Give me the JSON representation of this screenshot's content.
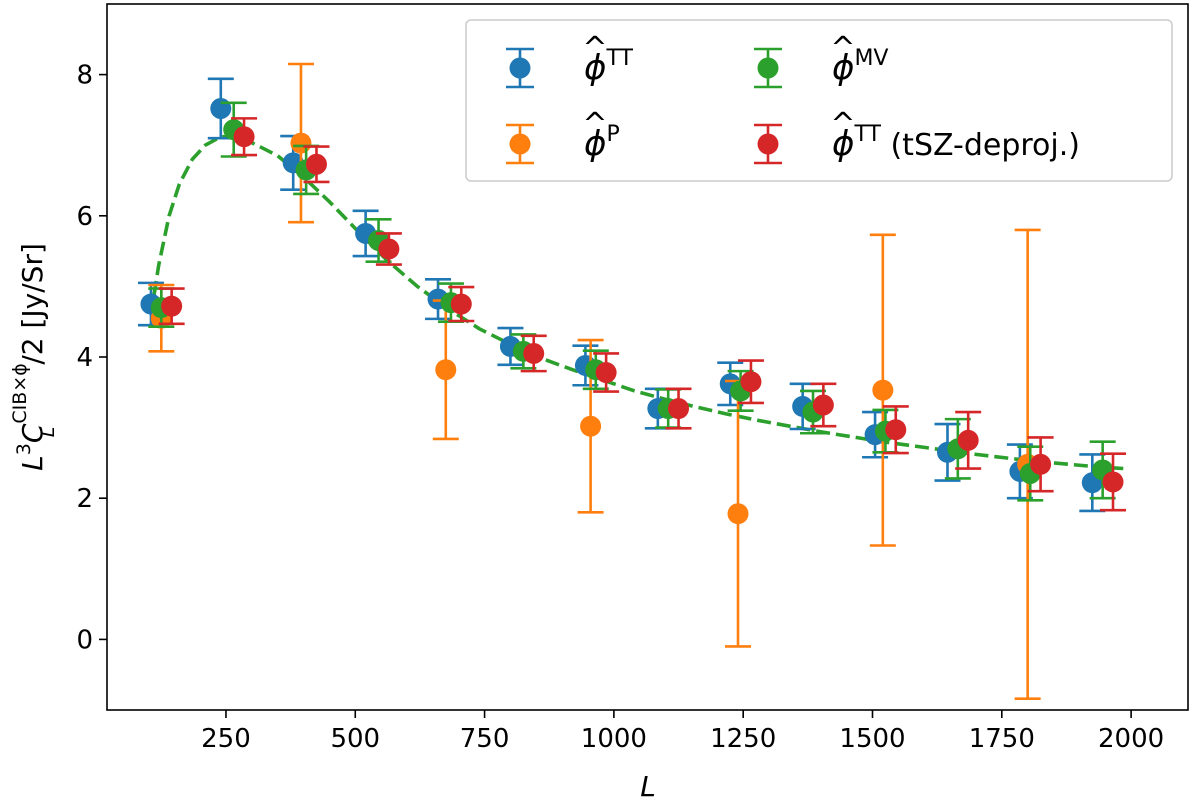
{
  "chart_data": {
    "type": "scatter",
    "xlabel": "L",
    "ylabel": {
      "base": "L",
      "exp": "3",
      "c": "C",
      "c_sup": "CIB×ϕ",
      "c_sub": "L",
      "tail": "/2 [Jy/Sr]"
    },
    "xlim": [
      20,
      2110
    ],
    "ylim": [
      -1.0,
      9.0
    ],
    "xticks": [
      250,
      500,
      750,
      1000,
      1250,
      1500,
      1750,
      2000
    ],
    "yticks": [
      0,
      2,
      4,
      6,
      8
    ],
    "grid": false,
    "legend_position": "top-right",
    "series": [
      {
        "name": "ϕ̂^TT",
        "label_base": "ϕ",
        "label_sup": "TT",
        "label_suffix": "",
        "color": "#1f77b4",
        "x": [
          105,
          240,
          380,
          520,
          660,
          800,
          945,
          1085,
          1225,
          1365,
          1505,
          1645,
          1785,
          1925
        ],
        "y": [
          4.75,
          7.52,
          6.75,
          5.75,
          4.82,
          4.15,
          3.88,
          3.27,
          3.62,
          3.3,
          2.9,
          2.65,
          2.38,
          2.22
        ],
        "err": [
          0.3,
          0.42,
          0.38,
          0.32,
          0.28,
          0.26,
          0.28,
          0.28,
          0.3,
          0.32,
          0.32,
          0.4,
          0.38,
          0.4
        ]
      },
      {
        "name": "ϕ̂^P",
        "label_base": "ϕ",
        "label_sup": "P",
        "label_suffix": "",
        "color": "#ff7f0e",
        "x": [
          125,
          395,
          675,
          955,
          1240,
          1520,
          1800
        ],
        "y": [
          4.55,
          7.03,
          3.82,
          3.02,
          1.78,
          3.53,
          2.48
        ],
        "err": [
          0.47,
          1.12,
          0.98,
          1.22,
          1.88,
          2.2,
          3.32
        ]
      },
      {
        "name": "ϕ̂^MV",
        "label_base": "ϕ",
        "label_sup": "MV",
        "label_suffix": "",
        "color": "#2ca02c",
        "x": [
          125,
          265,
          405,
          545,
          685,
          825,
          965,
          1105,
          1245,
          1385,
          1525,
          1665,
          1805,
          1945
        ],
        "y": [
          4.7,
          7.22,
          6.65,
          5.65,
          4.77,
          4.08,
          3.82,
          3.27,
          3.52,
          3.22,
          2.95,
          2.7,
          2.35,
          2.4
        ],
        "err": [
          0.27,
          0.38,
          0.34,
          0.3,
          0.27,
          0.24,
          0.27,
          0.27,
          0.28,
          0.3,
          0.3,
          0.42,
          0.38,
          0.4
        ]
      },
      {
        "name": "ϕ̂^TT (tSZ-deproj.)",
        "label_base": "ϕ",
        "label_sup": "TT",
        "label_suffix": " (tSZ-deproj.)",
        "color": "#d62728",
        "x": [
          145,
          285,
          425,
          565,
          705,
          845,
          985,
          1125,
          1265,
          1405,
          1545,
          1685,
          1825,
          1965
        ],
        "y": [
          4.72,
          7.12,
          6.73,
          5.53,
          4.75,
          4.05,
          3.78,
          3.27,
          3.65,
          3.32,
          2.97,
          2.82,
          2.48,
          2.23
        ],
        "err": [
          0.25,
          0.26,
          0.25,
          0.22,
          0.24,
          0.25,
          0.27,
          0.28,
          0.3,
          0.3,
          0.33,
          0.4,
          0.38,
          0.4
        ]
      }
    ],
    "model_curve": {
      "color": "#2ca02c",
      "style": "dashed",
      "x": [
        105,
        120,
        140,
        160,
        185,
        210,
        240,
        275,
        310,
        350,
        400,
        450,
        500,
        560,
        620,
        680,
        740,
        800,
        860,
        920,
        980,
        1040,
        1100,
        1160,
        1220,
        1280,
        1340,
        1400,
        1460,
        1520,
        1580,
        1640,
        1700,
        1760,
        1820,
        1880,
        1940,
        1985
      ],
      "y": [
        4.6,
        5.3,
        6.0,
        6.45,
        6.8,
        7.0,
        7.12,
        7.12,
        7.0,
        6.85,
        6.55,
        6.2,
        5.82,
        5.38,
        5.0,
        4.68,
        4.4,
        4.18,
        3.98,
        3.82,
        3.67,
        3.52,
        3.4,
        3.29,
        3.19,
        3.1,
        3.02,
        2.94,
        2.87,
        2.8,
        2.74,
        2.68,
        2.62,
        2.57,
        2.52,
        2.48,
        2.44,
        2.42
      ]
    }
  }
}
